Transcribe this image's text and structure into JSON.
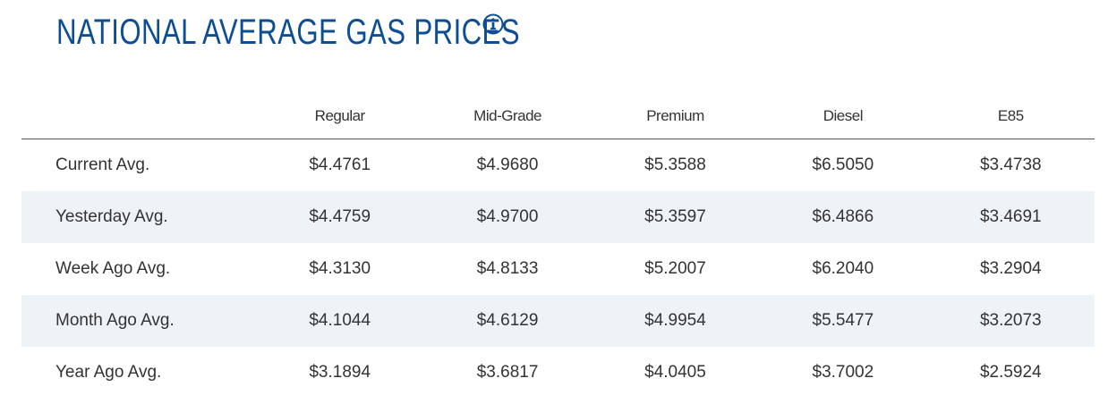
{
  "header": {
    "title": "NATIONAL AVERAGE GAS PRICES"
  },
  "table": {
    "columns": [
      "Regular",
      "Mid-Grade",
      "Premium",
      "Diesel",
      "E85"
    ],
    "rows": [
      {
        "label": "Current Avg.",
        "values": [
          "$4.4761",
          "$4.9680",
          "$5.3588",
          "$6.5050",
          "$3.4738"
        ]
      },
      {
        "label": "Yesterday Avg.",
        "values": [
          "$4.4759",
          "$4.9700",
          "$5.3597",
          "$6.4866",
          "$3.4691"
        ]
      },
      {
        "label": "Week Ago Avg.",
        "values": [
          "$4.3130",
          "$4.8133",
          "$5.2007",
          "$6.2040",
          "$3.2904"
        ]
      },
      {
        "label": "Month Ago Avg.",
        "values": [
          "$4.1044",
          "$4.6129",
          "$4.9954",
          "$5.5477",
          "$3.2073"
        ]
      },
      {
        "label": "Year Ago Avg.",
        "values": [
          "$3.1894",
          "$3.6817",
          "$4.0405",
          "$3.7002",
          "$2.5924"
        ]
      }
    ]
  }
}
